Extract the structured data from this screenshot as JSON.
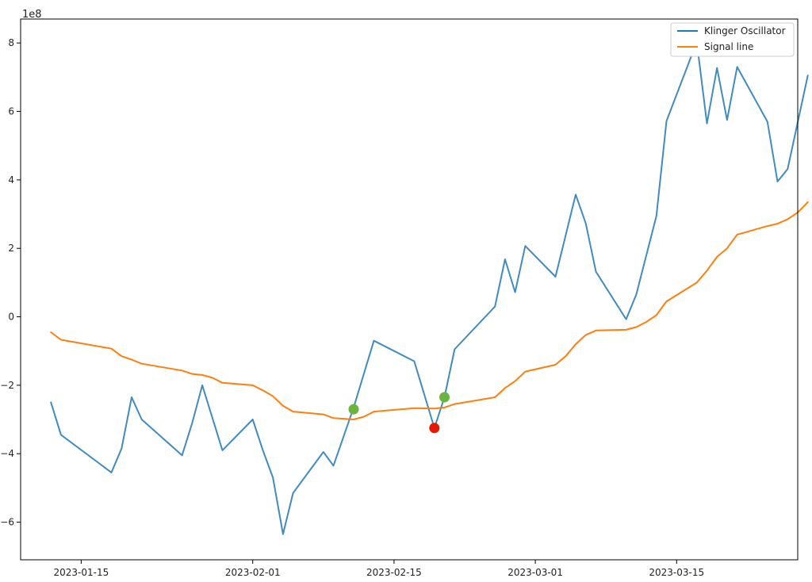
{
  "chart_data": {
    "type": "line",
    "title": "",
    "xlabel": "",
    "ylabel": "",
    "y_multiplier_label": "1e8",
    "xlim": [
      "2023-01-09",
      "2023-03-27"
    ],
    "ylim": [
      -7.1,
      8.7
    ],
    "x_ticks": [
      {
        "date": "2023-01-15",
        "label": "2023-01-15"
      },
      {
        "date": "2023-02-01",
        "label": "2023-02-01"
      },
      {
        "date": "2023-02-15",
        "label": "2023-02-15"
      },
      {
        "date": "2023-03-01",
        "label": "2023-03-01"
      },
      {
        "date": "2023-03-15",
        "label": "2023-03-15"
      }
    ],
    "y_ticks": [
      {
        "value": 8,
        "label": "8"
      },
      {
        "value": 6,
        "label": "6"
      },
      {
        "value": 4,
        "label": "4"
      },
      {
        "value": 2,
        "label": "2"
      },
      {
        "value": 0,
        "label": "0"
      },
      {
        "value": -2,
        "label": "−2"
      },
      {
        "value": -4,
        "label": "−4"
      },
      {
        "value": -6,
        "label": "−6"
      }
    ],
    "legend_position": "upper-right",
    "series": [
      {
        "name": "Klinger Oscillator",
        "color": "#1f77b4",
        "points": [
          [
            "2023-01-12",
            -2.5
          ],
          [
            "2023-01-13",
            -3.45
          ],
          [
            "2023-01-18",
            -4.55
          ],
          [
            "2023-01-19",
            -3.85
          ],
          [
            "2023-01-20",
            -2.35
          ],
          [
            "2023-01-21",
            -3.0
          ],
          [
            "2023-01-25",
            -4.05
          ],
          [
            "2023-01-26",
            -3.1
          ],
          [
            "2023-01-27",
            -2.0
          ],
          [
            "2023-01-29",
            -3.9
          ],
          [
            "2023-02-01",
            -3.0
          ],
          [
            "2023-02-02",
            -3.9
          ],
          [
            "2023-02-03",
            -4.7
          ],
          [
            "2023-02-04",
            -6.35
          ],
          [
            "2023-02-05",
            -5.15
          ],
          [
            "2023-02-08",
            -3.95
          ],
          [
            "2023-02-09",
            -4.35
          ],
          [
            "2023-02-11",
            -2.65
          ],
          [
            "2023-02-13",
            -0.7
          ],
          [
            "2023-02-17",
            -1.3
          ],
          [
            "2023-02-19",
            -3.25
          ],
          [
            "2023-02-20",
            -2.35
          ],
          [
            "2023-02-21",
            -0.95
          ],
          [
            "2023-02-25",
            0.3
          ],
          [
            "2023-02-26",
            1.68
          ],
          [
            "2023-02-27",
            0.72
          ],
          [
            "2023-02-28",
            2.07
          ],
          [
            "2023-03-03",
            1.17
          ],
          [
            "2023-03-05",
            3.57
          ],
          [
            "2023-03-06",
            2.73
          ],
          [
            "2023-03-07",
            1.32
          ],
          [
            "2023-03-10",
            -0.07
          ],
          [
            "2023-03-11",
            0.65
          ],
          [
            "2023-03-13",
            2.95
          ],
          [
            "2023-03-14",
            5.72
          ],
          [
            "2023-03-17",
            8.03
          ],
          [
            "2023-03-18",
            5.65
          ],
          [
            "2023-03-19",
            7.27
          ],
          [
            "2023-03-20",
            5.75
          ],
          [
            "2023-03-21",
            7.3
          ],
          [
            "2023-03-24",
            5.7
          ],
          [
            "2023-03-25",
            3.95
          ],
          [
            "2023-03-26",
            4.32
          ],
          [
            "2023-03-28",
            7.05
          ]
        ]
      },
      {
        "name": "Signal line",
        "color": "#ff7f0e",
        "points": [
          [
            "2023-01-12",
            -0.45
          ],
          [
            "2023-01-13",
            -0.67
          ],
          [
            "2023-01-18",
            -0.93
          ],
          [
            "2023-01-19",
            -1.15
          ],
          [
            "2023-01-20",
            -1.25
          ],
          [
            "2023-01-21",
            -1.37
          ],
          [
            "2023-01-25",
            -1.57
          ],
          [
            "2023-01-26",
            -1.67
          ],
          [
            "2023-01-27",
            -1.7
          ],
          [
            "2023-01-28",
            -1.78
          ],
          [
            "2023-01-29",
            -1.93
          ],
          [
            "2023-02-01",
            -2.0
          ],
          [
            "2023-02-02",
            -2.15
          ],
          [
            "2023-02-03",
            -2.32
          ],
          [
            "2023-02-04",
            -2.6
          ],
          [
            "2023-02-05",
            -2.77
          ],
          [
            "2023-02-08",
            -2.85
          ],
          [
            "2023-02-09",
            -2.96
          ],
          [
            "2023-02-11",
            -3.0
          ],
          [
            "2023-02-12",
            -2.92
          ],
          [
            "2023-02-13",
            -2.77
          ],
          [
            "2023-02-17",
            -2.67
          ],
          [
            "2023-02-19",
            -2.68
          ],
          [
            "2023-02-20",
            -2.65
          ],
          [
            "2023-02-21",
            -2.55
          ],
          [
            "2023-02-25",
            -2.35
          ],
          [
            "2023-02-26",
            -2.08
          ],
          [
            "2023-02-27",
            -1.88
          ],
          [
            "2023-02-28",
            -1.6
          ],
          [
            "2023-03-03",
            -1.4
          ],
          [
            "2023-03-04",
            -1.15
          ],
          [
            "2023-03-05",
            -0.8
          ],
          [
            "2023-03-06",
            -0.53
          ],
          [
            "2023-03-07",
            -0.4
          ],
          [
            "2023-03-10",
            -0.38
          ],
          [
            "2023-03-11",
            -0.3
          ],
          [
            "2023-03-12",
            -0.15
          ],
          [
            "2023-03-13",
            0.05
          ],
          [
            "2023-03-14",
            0.45
          ],
          [
            "2023-03-17",
            1.0
          ],
          [
            "2023-03-18",
            1.35
          ],
          [
            "2023-03-19",
            1.75
          ],
          [
            "2023-03-20",
            2.0
          ],
          [
            "2023-03-21",
            2.4
          ],
          [
            "2023-03-24",
            2.65
          ],
          [
            "2023-03-25",
            2.72
          ],
          [
            "2023-03-26",
            2.85
          ],
          [
            "2023-03-27",
            3.05
          ],
          [
            "2023-03-28",
            3.35
          ]
        ]
      }
    ],
    "markers": [
      {
        "date": "2023-02-11",
        "value": -2.7,
        "color": "#6ab43e"
      },
      {
        "date": "2023-02-19",
        "value": -3.25,
        "color": "#e31a00"
      },
      {
        "date": "2023-02-20",
        "value": -2.35,
        "color": "#6ab43e"
      }
    ]
  }
}
